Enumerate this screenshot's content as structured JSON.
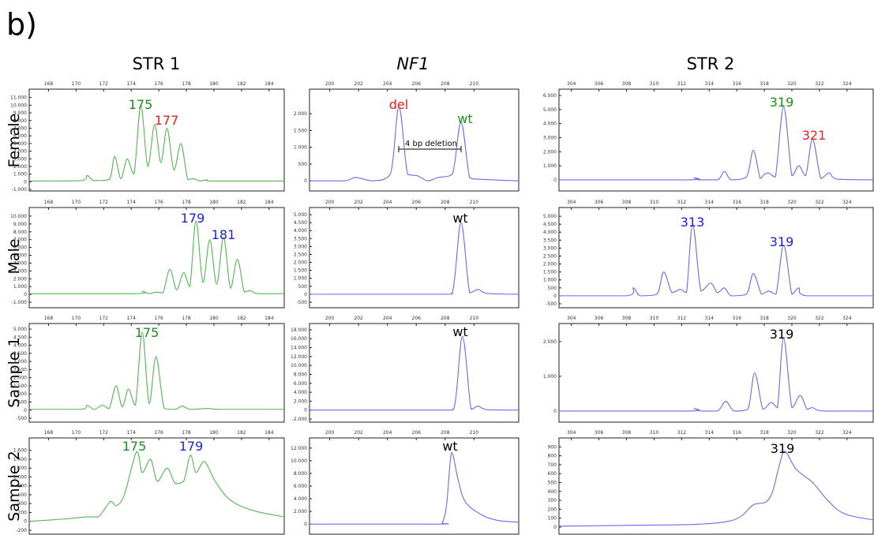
{
  "figure_label": "b)",
  "columns": [
    "STR 1",
    "NF1",
    "STR 2"
  ],
  "rows": [
    "Female",
    "Male",
    "Sample 1",
    "Sample 2"
  ],
  "chart_data": [
    {
      "type": "line",
      "color": "#55b555",
      "xlim": [
        166.6,
        185.1
      ],
      "xticks": [
        168,
        170,
        172,
        174,
        176,
        178,
        180,
        182,
        184
      ],
      "ylim": [
        -1200,
        12100
      ],
      "yticks": [
        {
          "value": -1000,
          "label": "-1.000"
        },
        0,
        {
          "value": 1000,
          "label": "1.000"
        },
        {
          "value": 2000,
          "label": "2.000"
        },
        {
          "value": 3000,
          "label": "3.000"
        },
        {
          "value": 4000,
          "label": "4.000"
        },
        {
          "value": 5000,
          "label": "5.000"
        },
        {
          "value": 6000,
          "label": "6.000"
        },
        {
          "value": 7000,
          "label": "7.000"
        },
        {
          "value": 8000,
          "label": "8.000"
        },
        {
          "value": 9000,
          "label": "9.000"
        },
        {
          "value": 10000,
          "label": "10.000"
        },
        {
          "value": 11000,
          "label": "11.000"
        }
      ],
      "x": [
        166.6,
        170.3,
        170.8,
        171.3,
        172.4,
        172.8,
        173.25,
        173.7,
        174.2,
        174.7,
        175.2,
        175.7,
        176.15,
        176.6,
        177.1,
        177.6,
        178.1,
        178.5,
        179.0,
        179.5,
        180,
        185.1
      ],
      "values": [
        100,
        150,
        800,
        150,
        300,
        3300,
        400,
        3000,
        1000,
        10000,
        2000,
        7500,
        2500,
        7000,
        1500,
        5000,
        300,
        400,
        100,
        250,
        100,
        100
      ],
      "annotations": [
        {
          "text": "175",
          "color": "#1e8c1e"
        },
        {
          "text": "177",
          "color": "#e8201e"
        }
      ]
    },
    {
      "type": "line",
      "color": "#6a6af0",
      "xlim": [
        198.6,
        213.1
      ],
      "xticks": [
        200,
        202,
        204,
        206,
        208,
        210
      ],
      "ylim": [
        -300,
        2730
      ],
      "yticks": [
        0,
        500,
        {
          "value": 1000,
          "label": "1.000"
        },
        {
          "value": 1500,
          "label": "1.500"
        },
        {
          "value": 2000,
          "label": "2.000"
        }
      ],
      "x": [
        198.6,
        201,
        201.8,
        203,
        204.2,
        204.8,
        205.4,
        206.1,
        206.8,
        207.5,
        208.5,
        209.1,
        209.7,
        210.3,
        213.1
      ],
      "values": [
        0,
        0,
        100,
        0,
        200,
        2200,
        200,
        150,
        0,
        100,
        200,
        1750,
        100,
        50,
        0
      ],
      "annotations": [
        {
          "text": "del",
          "color": "#e8201e"
        },
        {
          "text": "wt",
          "color": "#1e8c1e"
        },
        {
          "text": "4 bp deletion",
          "color": "#000000"
        }
      ]
    },
    {
      "type": "line",
      "color": "#6a6af0",
      "xlim": [
        303.1,
        325.9
      ],
      "xticks": [
        304,
        306,
        308,
        310,
        312,
        314,
        316,
        318,
        320,
        322,
        324
      ],
      "ylim": [
        -790,
        6450
      ],
      "yticks": [
        0,
        {
          "value": 1000,
          "label": "1.000"
        },
        {
          "value": 2000,
          "label": "2.000"
        },
        {
          "value": 3000,
          "label": "3.000"
        },
        {
          "value": 4000,
          "label": "4.000"
        },
        {
          "value": 5000,
          "label": "5.000"
        },
        {
          "value": 6000,
          "label": "6.000"
        }
      ],
      "x": [
        303.1,
        312.5,
        312.9,
        313.3,
        314.6,
        315.1,
        315.6,
        316.7,
        317.2,
        317.7,
        318.0,
        318.3,
        318.8,
        319.4,
        320.0,
        320.5,
        321.0,
        321.5,
        322.1,
        322.7,
        323.3,
        325.9
      ],
      "values": [
        0,
        0,
        150,
        0,
        0,
        600,
        0,
        200,
        2100,
        100,
        400,
        500,
        200,
        5200,
        300,
        1000,
        300,
        2900,
        100,
        500,
        50,
        0
      ],
      "annotations": [
        {
          "text": "319",
          "color": "#1e8c1e"
        },
        {
          "text": "321",
          "color": "#e8201e"
        }
      ]
    },
    {
      "type": "line",
      "color": "#55b555",
      "xlim": [
        166.6,
        185.1
      ],
      "xticks": [
        168,
        170,
        172,
        174,
        176,
        178,
        180,
        182,
        184
      ],
      "ylim": [
        -1700,
        11100
      ],
      "yticks": [
        {
          "value": -1000,
          "label": "-1.000"
        },
        0,
        {
          "value": 1000,
          "label": "1.000"
        },
        {
          "value": 2000,
          "label": "2.000"
        },
        {
          "value": 3000,
          "label": "3.000"
        },
        {
          "value": 4000,
          "label": "4.000"
        },
        {
          "value": 5000,
          "label": "5.000"
        },
        {
          "value": 6000,
          "label": "6.000"
        },
        {
          "value": 7000,
          "label": "7.000"
        },
        {
          "value": 8000,
          "label": "8.000"
        },
        {
          "value": 9000,
          "label": "9.000"
        },
        {
          "value": 10000,
          "label": "10.000"
        }
      ],
      "x": [
        166.6,
        174.3,
        174.8,
        175.3,
        175.8,
        176.3,
        176.8,
        177.3,
        177.8,
        178.25,
        178.7,
        179.2,
        179.7,
        180.2,
        180.7,
        181.2,
        181.7,
        182.2,
        182.6,
        183.2,
        185.1
      ],
      "values": [
        100,
        100,
        400,
        100,
        300,
        200,
        3200,
        600,
        2800,
        1000,
        9400,
        1500,
        7000,
        1300,
        7300,
        800,
        4500,
        300,
        500,
        100,
        100
      ],
      "annotations": [
        {
          "text": "179",
          "color": "#2020e0"
        },
        {
          "text": "181",
          "color": "#2020e0"
        }
      ]
    },
    {
      "type": "line",
      "color": "#6a6af0",
      "xlim": [
        198.6,
        213.1
      ],
      "xticks": [
        200,
        202,
        204,
        206,
        208,
        210
      ],
      "ylim": [
        -850,
        5450
      ],
      "yticks": [
        -500,
        0,
        500,
        {
          "value": 1000,
          "label": "1.000"
        },
        {
          "value": 1500,
          "label": "1.500"
        },
        {
          "value": 2000,
          "label": "2.000"
        },
        {
          "value": 2500,
          "label": "2.500"
        },
        {
          "value": 3000,
          "label": "3.000"
        },
        {
          "value": 3500,
          "label": "3.500"
        },
        {
          "value": 4000,
          "label": "4.000"
        },
        {
          "value": 4500,
          "label": "4.500"
        },
        {
          "value": 5000,
          "label": "5.000"
        }
      ],
      "x": [
        198.6,
        207.5,
        208.5,
        209.1,
        209.7,
        210.3,
        210.9,
        213.1
      ],
      "values": [
        0,
        0,
        100,
        4500,
        100,
        300,
        50,
        0
      ],
      "annotations": [
        {
          "text": "wt",
          "color": "#000000"
        }
      ]
    },
    {
      "type": "line",
      "color": "#6a6af0",
      "xlim": [
        303.1,
        325.9
      ],
      "xticks": [
        304,
        306,
        308,
        310,
        312,
        314,
        316,
        318,
        320,
        322,
        324
      ],
      "ylim": [
        -750,
        5550
      ],
      "yticks": [
        -500,
        0,
        500,
        {
          "value": 1000,
          "label": "1.000"
        },
        {
          "value": 1500,
          "label": "1.500"
        },
        {
          "value": 2000,
          "label": "2.000"
        },
        {
          "value": 2500,
          "label": "2.500"
        },
        {
          "value": 3000,
          "label": "3.000"
        },
        {
          "value": 3500,
          "label": "3.500"
        },
        {
          "value": 4000,
          "label": "4.000"
        },
        {
          "value": 4500,
          "label": "4.500"
        },
        {
          "value": 5000,
          "label": "5.000"
        }
      ],
      "x": [
        303.1,
        308.0,
        308.5,
        309.0,
        310.2,
        310.7,
        311.3,
        311.9,
        312.35,
        312.8,
        313.4,
        314.1,
        314.6,
        315.1,
        315.6,
        316.7,
        317.2,
        317.8,
        318.3,
        318.85,
        319.4,
        320.0,
        320.5,
        321.1,
        325.9
      ],
      "values": [
        0,
        0,
        500,
        0,
        100,
        1500,
        200,
        400,
        200,
        4500,
        300,
        800,
        200,
        500,
        0,
        100,
        1400,
        100,
        300,
        100,
        3200,
        100,
        500,
        0,
        0
      ],
      "annotations": [
        {
          "text": "313",
          "color": "#2020e0"
        },
        {
          "text": "319",
          "color": "#2020e0"
        }
      ]
    },
    {
      "type": "line",
      "color": "#55b555",
      "xlim": [
        166.6,
        185.1
      ],
      "xticks": [
        168,
        170,
        172,
        174,
        176,
        178,
        180,
        182,
        184
      ],
      "ylim": [
        -740,
        5340
      ],
      "yticks": [
        -500,
        0,
        500,
        {
          "value": 1000,
          "label": "1.000"
        },
        {
          "value": 1500,
          "label": "1.500"
        },
        {
          "value": 2000,
          "label": "2.000"
        },
        {
          "value": 2500,
          "label": "2.500"
        },
        {
          "value": 3000,
          "label": "3.000"
        },
        {
          "value": 3500,
          "label": "3.500"
        },
        {
          "value": 4000,
          "label": "4.000"
        },
        {
          "value": 4500,
          "label": "4.500"
        },
        {
          "value": 5000,
          "label": "5.000"
        }
      ],
      "x": [
        166.6,
        170.3,
        170.8,
        171.3,
        171.9,
        172.4,
        172.9,
        173.35,
        173.8,
        174.3,
        174.8,
        175.3,
        175.8,
        176.4,
        177.2,
        177.7,
        178.3,
        179.6,
        180.5,
        185.1
      ],
      "values": [
        50,
        50,
        300,
        50,
        300,
        100,
        1500,
        200,
        1300,
        300,
        4800,
        400,
        3300,
        100,
        50,
        250,
        50,
        100,
        50,
        50
      ],
      "annotations": [
        {
          "text": "175",
          "color": "#1e8c1e"
        }
      ]
    },
    {
      "type": "line",
      "color": "#6a6af0",
      "xlim": [
        198.6,
        213.1
      ],
      "xticks": [
        200,
        202,
        204,
        206,
        208,
        210
      ],
      "ylim": [
        -2700,
        19400
      ],
      "yticks": [
        {
          "value": -2000,
          "label": "-2.000"
        },
        0,
        {
          "value": 2000,
          "label": "2.000"
        },
        {
          "value": 4000,
          "label": "4.000"
        },
        {
          "value": 6000,
          "label": "6.000"
        },
        {
          "value": 8000,
          "label": "8.000"
        },
        {
          "value": 10000,
          "label": "10.000"
        },
        {
          "value": 12000,
          "label": "12.000"
        },
        {
          "value": 14000,
          "label": "14.000"
        },
        {
          "value": 16000,
          "label": "16.000"
        },
        {
          "value": 18000,
          "label": "18.000"
        }
      ],
      "x": [
        198.6,
        207.5,
        208.6,
        209.2,
        209.8,
        210.3,
        210.9,
        213.1
      ],
      "values": [
        0,
        0,
        300,
        16500,
        200,
        900,
        100,
        0
      ],
      "annotations": [
        {
          "text": "wt",
          "color": "#000000"
        }
      ]
    },
    {
      "type": "line",
      "color": "#6a6af0",
      "xlim": [
        303.1,
        325.9
      ],
      "xticks": [
        304,
        306,
        308,
        310,
        312,
        314,
        316,
        318,
        320,
        322,
        324
      ],
      "ylim": [
        -320,
        2520
      ],
      "yticks": [
        0,
        {
          "value": 1000,
          "label": "1.000"
        },
        {
          "value": 2000,
          "label": "2.000"
        }
      ],
      "x": [
        303.1,
        312.5,
        312.9,
        313.4,
        314.6,
        315.2,
        315.8,
        316.8,
        317.3,
        317.9,
        318.5,
        318.95,
        319.4,
        320.0,
        320.6,
        321.1,
        321.5,
        322.3,
        325.9
      ],
      "values": [
        0,
        0,
        70,
        0,
        0,
        280,
        0,
        50,
        1100,
        50,
        250,
        100,
        2100,
        100,
        450,
        50,
        100,
        0,
        0
      ],
      "annotations": [
        {
          "text": "319",
          "color": "#000000"
        }
      ]
    },
    {
      "type": "line",
      "color": "#55b555",
      "xlim": [
        166.6,
        185.1
      ],
      "xticks": [
        168,
        170,
        172,
        174,
        176,
        178,
        180,
        182,
        184
      ],
      "ylim": [
        -290,
        1880
      ],
      "yticks": [
        -200,
        0,
        200,
        400,
        600,
        800,
        {
          "value": 1000,
          "label": "1.000"
        },
        {
          "value": 1200,
          "label": "1.200"
        },
        {
          "value": 1400,
          "label": "1.400"
        },
        {
          "value": 1600,
          "label": "1.600"
        }
      ],
      "x": [
        166.6,
        169,
        170.8,
        171.6,
        172.5,
        172.9,
        173.5,
        174.4,
        174.8,
        175.4,
        175.9,
        176.6,
        177.2,
        177.8,
        178.3,
        178.7,
        179.3,
        180.1,
        181.1,
        182.3,
        183.4,
        185.1
      ],
      "values": [
        0,
        50,
        100,
        100,
        450,
        350,
        600,
        1580,
        1100,
        1400,
        900,
        1200,
        850,
        900,
        1500,
        1100,
        1350,
        900,
        500,
        300,
        200,
        100
      ],
      "annotations": [
        {
          "text": "175",
          "color": "#1e8c1e"
        },
        {
          "text": "179",
          "color": "#2020e0"
        }
      ]
    },
    {
      "type": "line",
      "color": "#6a6af0",
      "xlim": [
        198.6,
        213.1
      ],
      "xticks": [
        200,
        202,
        204,
        206,
        208,
        210
      ],
      "ylim": [
        -1600,
        13600
      ],
      "yticks": [
        0,
        {
          "value": 2000,
          "label": "2.000"
        },
        {
          "value": 4000,
          "label": "4.000"
        },
        {
          "value": 6000,
          "label": "6.000"
        },
        {
          "value": 8000,
          "label": "8.000"
        },
        {
          "value": 10000,
          "label": "10.000"
        },
        {
          "value": 12000,
          "label": "12.000"
        }
      ],
      "x": [
        198.6,
        207.5,
        207.8,
        208.1,
        208.45,
        208.9,
        209.4,
        210.5,
        211.6,
        213.1
      ],
      "values": [
        0,
        0,
        200,
        3000,
        11300,
        7000,
        3500,
        1500,
        600,
        300
      ],
      "annotations": [
        {
          "text": "wt",
          "color": "#000000"
        }
      ]
    },
    {
      "type": "line",
      "color": "#6a6af0",
      "xlim": [
        303.1,
        325.9
      ],
      "xticks": [
        304,
        306,
        308,
        310,
        312,
        314,
        316,
        318,
        320,
        322,
        324
      ],
      "ylim": [
        -80,
        1000
      ],
      "yticks": [
        0,
        100,
        200,
        300,
        400,
        500,
        600,
        700,
        800,
        900
      ],
      "x": [
        303.1,
        308.3,
        312.9,
        315.2,
        316.3,
        317.2,
        318.1,
        318.6,
        319.1,
        319.5,
        320.3,
        321.5,
        322.6,
        323.8,
        325.9
      ],
      "values": [
        10,
        20,
        30,
        60,
        120,
        250,
        280,
        400,
        700,
        850,
        650,
        500,
        300,
        150,
        80
      ],
      "annotations": [
        {
          "text": "319",
          "color": "#000000"
        }
      ]
    }
  ]
}
